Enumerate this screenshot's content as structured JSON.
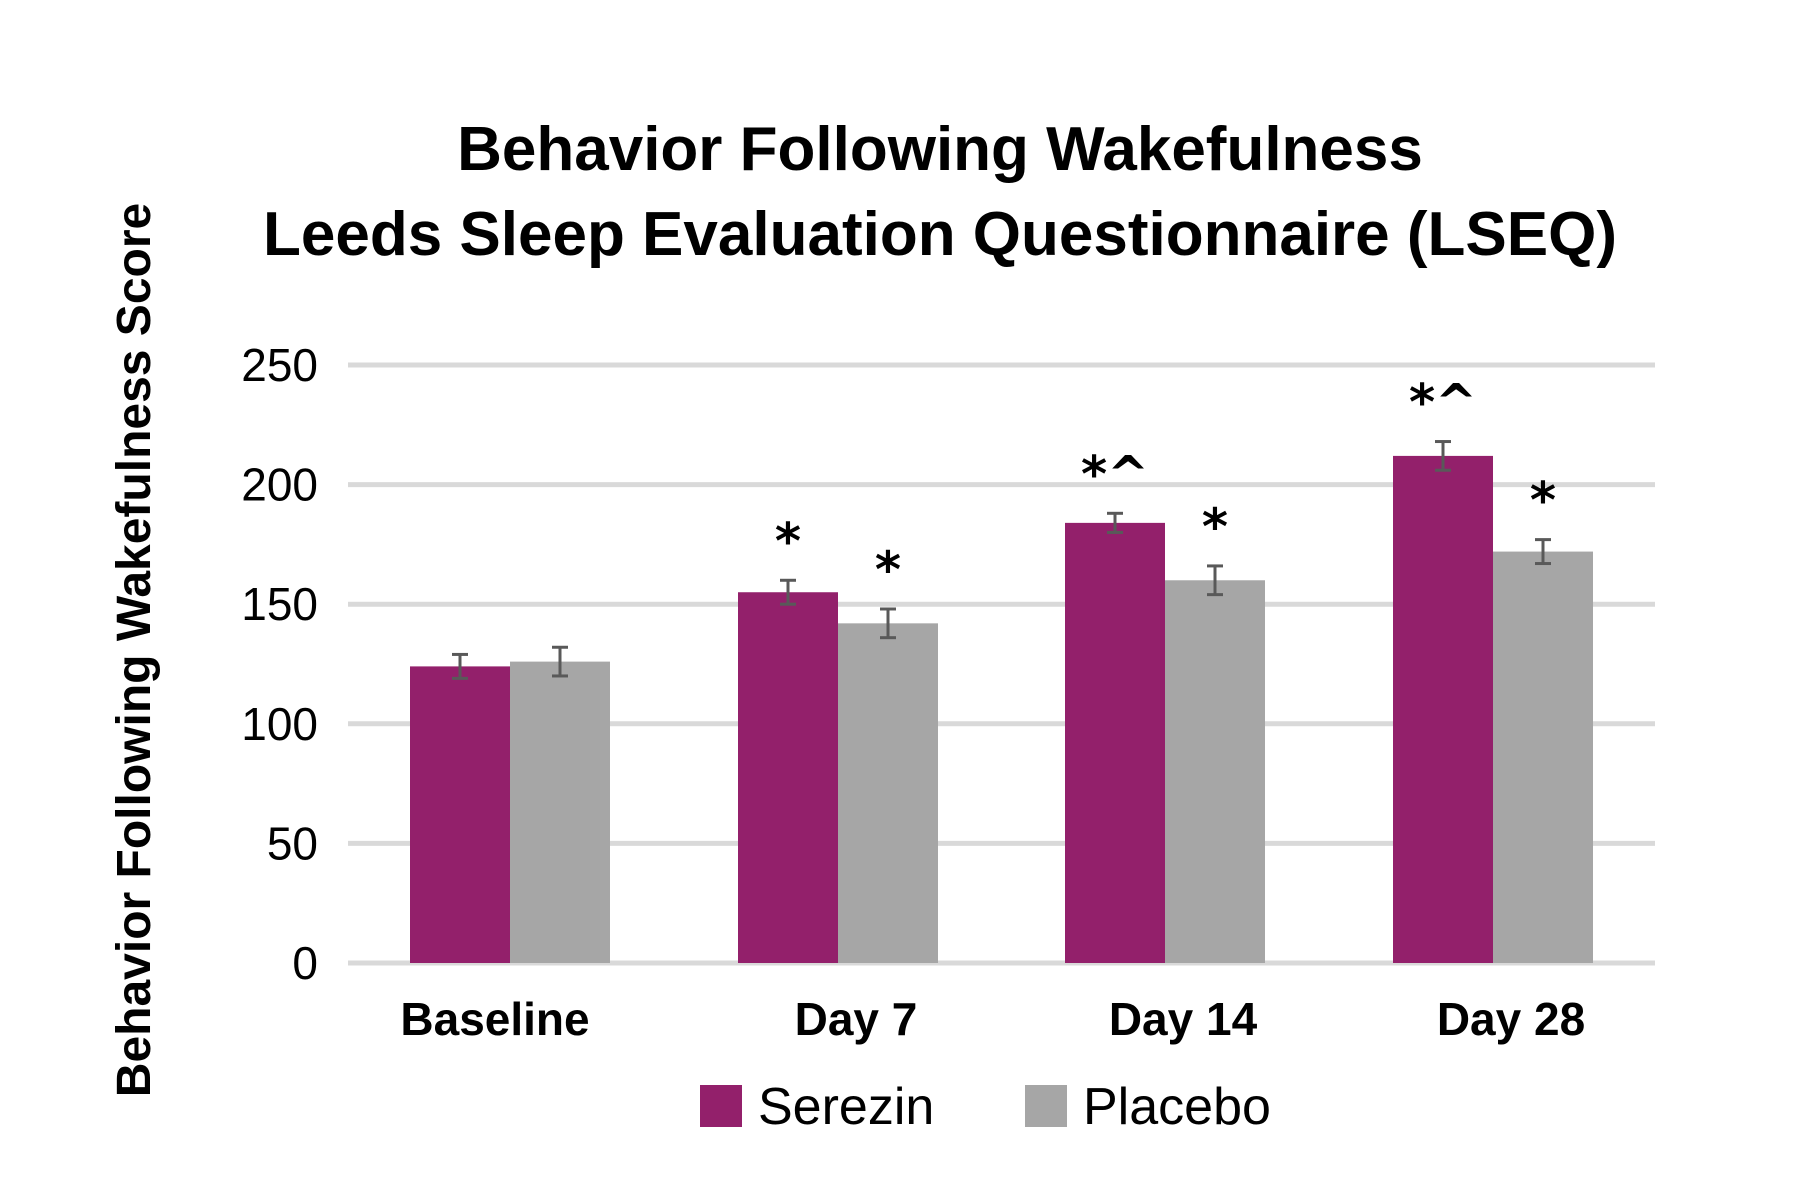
{
  "chart_data": {
    "type": "bar",
    "title": "Behavior Following Wakefulness",
    "subtitle": "Leeds Sleep Evaluation Questionnaire (LSEQ)",
    "xlabel": "",
    "ylabel": "Behavior Following Wakefulness Score",
    "ylim": [
      0,
      250
    ],
    "yticks": [
      0,
      50,
      100,
      150,
      200,
      250
    ],
    "grid": true,
    "legend_position": "bottom",
    "categories": [
      "Baseline",
      "Day 7",
      "Day 14",
      "Day 28"
    ],
    "series": [
      {
        "name": "Serezin",
        "color": "#93206b",
        "values": [
          124,
          155,
          184,
          212
        ],
        "errors": [
          5,
          5,
          4,
          6
        ],
        "annotations": [
          "",
          "*",
          "*^",
          "*^"
        ]
      },
      {
        "name": "Placebo",
        "color": "#a6a6a6",
        "values": [
          126,
          142,
          160,
          172
        ],
        "errors": [
          6,
          6,
          6,
          5
        ],
        "annotations": [
          "",
          "*",
          "*",
          "*"
        ]
      }
    ],
    "gridline_color": "#d9d9d9",
    "errorbar_color": "#595959"
  }
}
